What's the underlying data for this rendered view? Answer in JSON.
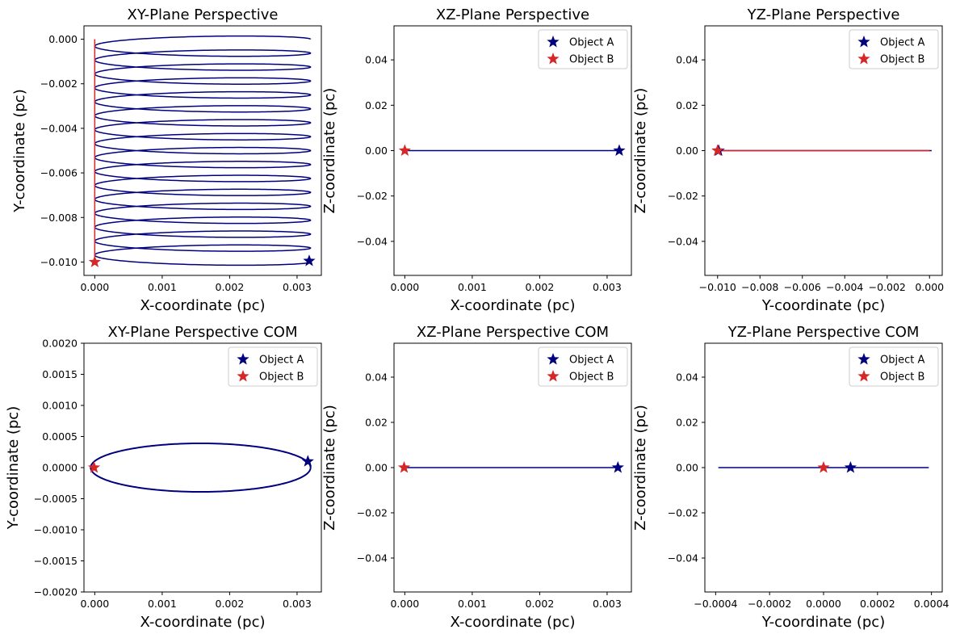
{
  "colors": {
    "object_a": "#00007f",
    "object_b": "#d62728",
    "axes": "#000000"
  },
  "chart_data": [
    {
      "type": "line",
      "title": "XY-Plane Perspective",
      "xlabel": "X-coordinate (pc)",
      "ylabel": "Y-coordinate (pc)",
      "xlim": [
        -0.00016,
        0.00336
      ],
      "ylim": [
        -0.0106,
        0.0006
      ],
      "xticks": [
        0.0,
        0.001,
        0.002,
        0.003
      ],
      "xtick_labels": [
        "0.000",
        "0.001",
        "0.002",
        "0.003"
      ],
      "yticks": [
        0.0,
        -0.002,
        -0.004,
        -0.006,
        -0.008,
        -0.01
      ],
      "ytick_labels": [
        "0.000",
        "−0.002",
        "−0.004",
        "−0.006",
        "−0.008",
        "−0.010"
      ],
      "legend": false,
      "series": [
        {
          "name": "Object A",
          "kind": "helix",
          "x_min": 0.0,
          "x_max": 0.0032,
          "y_start": 0.0,
          "y_end": -0.01,
          "turns": 16
        },
        {
          "name": "Object B",
          "kind": "line",
          "x": [
            0.0,
            0.0
          ],
          "y": [
            0.0,
            -0.01
          ]
        }
      ],
      "markers": [
        {
          "name": "Object A",
          "x": 0.00318,
          "y": -0.00995
        },
        {
          "name": "Object B",
          "x": 0.0,
          "y": -0.01
        }
      ]
    },
    {
      "type": "line",
      "title": "XZ-Plane Perspective",
      "xlabel": "X-coordinate (pc)",
      "ylabel": "Z-coordinate (pc)",
      "xlim": [
        -0.00016,
        0.00336
      ],
      "ylim": [
        -0.055,
        0.055
      ],
      "xticks": [
        0.0,
        0.001,
        0.002,
        0.003
      ],
      "xtick_labels": [
        "0.000",
        "0.001",
        "0.002",
        "0.003"
      ],
      "yticks": [
        0.04,
        0.02,
        0.0,
        -0.02,
        -0.04
      ],
      "ytick_labels": [
        "0.04",
        "0.02",
        "0.00",
        "−0.02",
        "−0.04"
      ],
      "legend": true,
      "legend_entries": [
        "Object A",
        "Object B"
      ],
      "series": [
        {
          "name": "Object A",
          "kind": "line",
          "x": [
            0.0,
            0.0032
          ],
          "y": [
            0.0,
            0.0
          ]
        },
        {
          "name": "Object B",
          "kind": "line",
          "x": [
            0.0,
            0.0
          ],
          "y": [
            0.0,
            0.0
          ]
        }
      ],
      "markers": [
        {
          "name": "Object A",
          "x": 0.00318,
          "y": 0.0
        },
        {
          "name": "Object B",
          "x": 0.0,
          "y": 0.0
        }
      ]
    },
    {
      "type": "line",
      "title": "YZ-Plane Perspective",
      "xlabel": "Y-coordinate (pc)",
      "ylabel": "Z-coordinate (pc)",
      "xlim": [
        -0.0106,
        0.0006
      ],
      "ylim": [
        -0.055,
        0.055
      ],
      "xticks": [
        -0.01,
        -0.008,
        -0.006,
        -0.004,
        -0.002,
        0.0
      ],
      "xtick_labels": [
        "−0.010",
        "−0.008",
        "−0.006",
        "−0.004",
        "−0.002",
        "0.000"
      ],
      "yticks": [
        0.04,
        0.02,
        0.0,
        -0.02,
        -0.04
      ],
      "ytick_labels": [
        "0.04",
        "0.02",
        "0.00",
        "−0.02",
        "−0.04"
      ],
      "legend": true,
      "legend_entries": [
        "Object A",
        "Object B"
      ],
      "series": [
        {
          "name": "Object A",
          "kind": "line",
          "x": [
            -0.01,
            0.0001
          ],
          "y": [
            0.0,
            0.0
          ]
        },
        {
          "name": "Object B",
          "kind": "line",
          "x": [
            -0.01,
            0.0
          ],
          "y": [
            0.0,
            0.0
          ]
        }
      ],
      "markers": [
        {
          "name": "Object A",
          "x": -0.00995,
          "y": 0.0
        },
        {
          "name": "Object B",
          "x": -0.01,
          "y": 0.0
        }
      ]
    },
    {
      "type": "line",
      "title": "XY-Plane Perspective COM",
      "xlabel": "X-coordinate (pc)",
      "ylabel": "Y-coordinate (pc)",
      "xlim": [
        -0.00016,
        0.00336
      ],
      "ylim": [
        -0.002,
        0.002
      ],
      "xticks": [
        0.0,
        0.001,
        0.002,
        0.003
      ],
      "xtick_labels": [
        "0.000",
        "0.001",
        "0.002",
        "0.003"
      ],
      "yticks": [
        0.002,
        0.0015,
        0.001,
        0.0005,
        0.0,
        -0.0005,
        -0.001,
        -0.0015,
        -0.002
      ],
      "ytick_labels": [
        "0.0020",
        "0.0015",
        "0.0010",
        "0.0005",
        "0.0000",
        "−0.0005",
        "−0.0010",
        "−0.0015",
        "−0.0020"
      ],
      "legend": true,
      "legend_entries": [
        "Object A",
        "Object B"
      ],
      "series": [
        {
          "name": "Object A",
          "kind": "ellipse",
          "cx": 0.00157,
          "cy": 0.0,
          "rx": 0.00163,
          "ry": 0.00039
        },
        {
          "name": "Object B",
          "kind": "line",
          "x": [
            -2e-05,
            0.0
          ],
          "y": [
            0.0,
            0.0
          ]
        }
      ],
      "markers": [
        {
          "name": "Object A",
          "x": 0.00316,
          "y": 0.0001
        },
        {
          "name": "Object B",
          "x": -1e-05,
          "y": 0.0
        }
      ]
    },
    {
      "type": "line",
      "title": "XZ-Plane Perspective COM",
      "xlabel": "X-coordinate (pc)",
      "ylabel": "Z-coordinate (pc)",
      "xlim": [
        -0.00016,
        0.00336
      ],
      "ylim": [
        -0.055,
        0.055
      ],
      "xticks": [
        0.0,
        0.001,
        0.002,
        0.003
      ],
      "xtick_labels": [
        "0.000",
        "0.001",
        "0.002",
        "0.003"
      ],
      "yticks": [
        0.04,
        0.02,
        0.0,
        -0.02,
        -0.04
      ],
      "ytick_labels": [
        "0.04",
        "0.02",
        "0.00",
        "−0.02",
        "−0.04"
      ],
      "legend": true,
      "legend_entries": [
        "Object A",
        "Object B"
      ],
      "series": [
        {
          "name": "Object A",
          "kind": "line",
          "x": [
            0.0,
            0.0032
          ],
          "y": [
            0.0,
            0.0
          ]
        },
        {
          "name": "Object B",
          "kind": "line",
          "x": [
            -2e-05,
            0.0
          ],
          "y": [
            0.0,
            0.0
          ]
        }
      ],
      "markers": [
        {
          "name": "Object A",
          "x": 0.00316,
          "y": 0.0
        },
        {
          "name": "Object B",
          "x": -1e-05,
          "y": 0.0
        }
      ]
    },
    {
      "type": "line",
      "title": "YZ-Plane Perspective COM",
      "xlabel": "Y-coordinate (pc)",
      "ylabel": "Z-coordinate (pc)",
      "xlim": [
        -0.00044,
        0.00044
      ],
      "ylim": [
        -0.055,
        0.055
      ],
      "xticks": [
        -0.0004,
        -0.0002,
        0.0,
        0.0002,
        0.0004
      ],
      "xtick_labels": [
        "−0.0004",
        "−0.0002",
        "0.0000",
        "0.0002",
        "0.0004"
      ],
      "yticks": [
        0.04,
        0.02,
        0.0,
        -0.02,
        -0.04
      ],
      "ytick_labels": [
        "0.04",
        "0.02",
        "0.00",
        "−0.02",
        "−0.04"
      ],
      "legend": true,
      "legend_entries": [
        "Object A",
        "Object B"
      ],
      "series": [
        {
          "name": "Object A",
          "kind": "line",
          "x": [
            -0.00039,
            0.00039
          ],
          "y": [
            0.0,
            0.0
          ]
        },
        {
          "name": "Object B",
          "kind": "line",
          "x": [
            -1e-05,
            1e-05
          ],
          "y": [
            0.0,
            0.0
          ]
        }
      ],
      "markers": [
        {
          "name": "Object A",
          "x": 0.0001,
          "y": 0.0
        },
        {
          "name": "Object B",
          "x": 0.0,
          "y": 0.0
        }
      ]
    }
  ]
}
